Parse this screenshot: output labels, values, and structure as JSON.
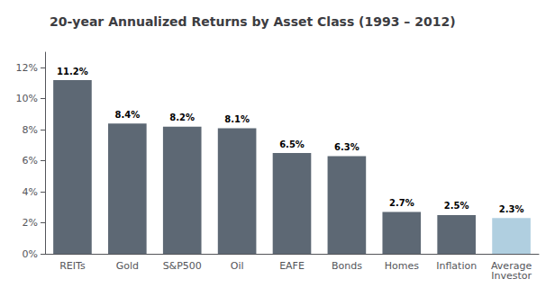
{
  "chart_data": {
    "type": "bar",
    "title": "20-year Annualized Returns by Asset Class (1993 – 2012)",
    "categories": [
      "REITs",
      "Gold",
      "S&P500",
      "Oil",
      "EAFE",
      "Bonds",
      "Homes",
      "Inflation",
      "Average\nInvestor"
    ],
    "values": [
      11.2,
      8.4,
      8.2,
      8.1,
      6.5,
      6.3,
      2.7,
      2.5,
      2.3
    ],
    "value_labels": [
      "11.2%",
      "8.4%",
      "8.2%",
      "8.1%",
      "6.5%",
      "6.3%",
      "2.7%",
      "2.5%",
      "2.3%"
    ],
    "data_labels": true,
    "colors": [
      "#5d6874",
      "#5d6874",
      "#5d6874",
      "#5d6874",
      "#5d6874",
      "#5d6874",
      "#5d6874",
      "#5d6874",
      "#b0cfe0"
    ],
    "ylim": [
      0,
      13
    ],
    "yticks": [
      {
        "value": 0,
        "label": "0%"
      },
      {
        "value": 2,
        "label": "2%"
      },
      {
        "value": 4,
        "label": "4%"
      },
      {
        "value": 6,
        "label": "6%"
      },
      {
        "value": 8,
        "label": "8%"
      },
      {
        "value": 10,
        "label": "10%"
      },
      {
        "value": 12,
        "label": "12%"
      }
    ],
    "grid": false
  }
}
